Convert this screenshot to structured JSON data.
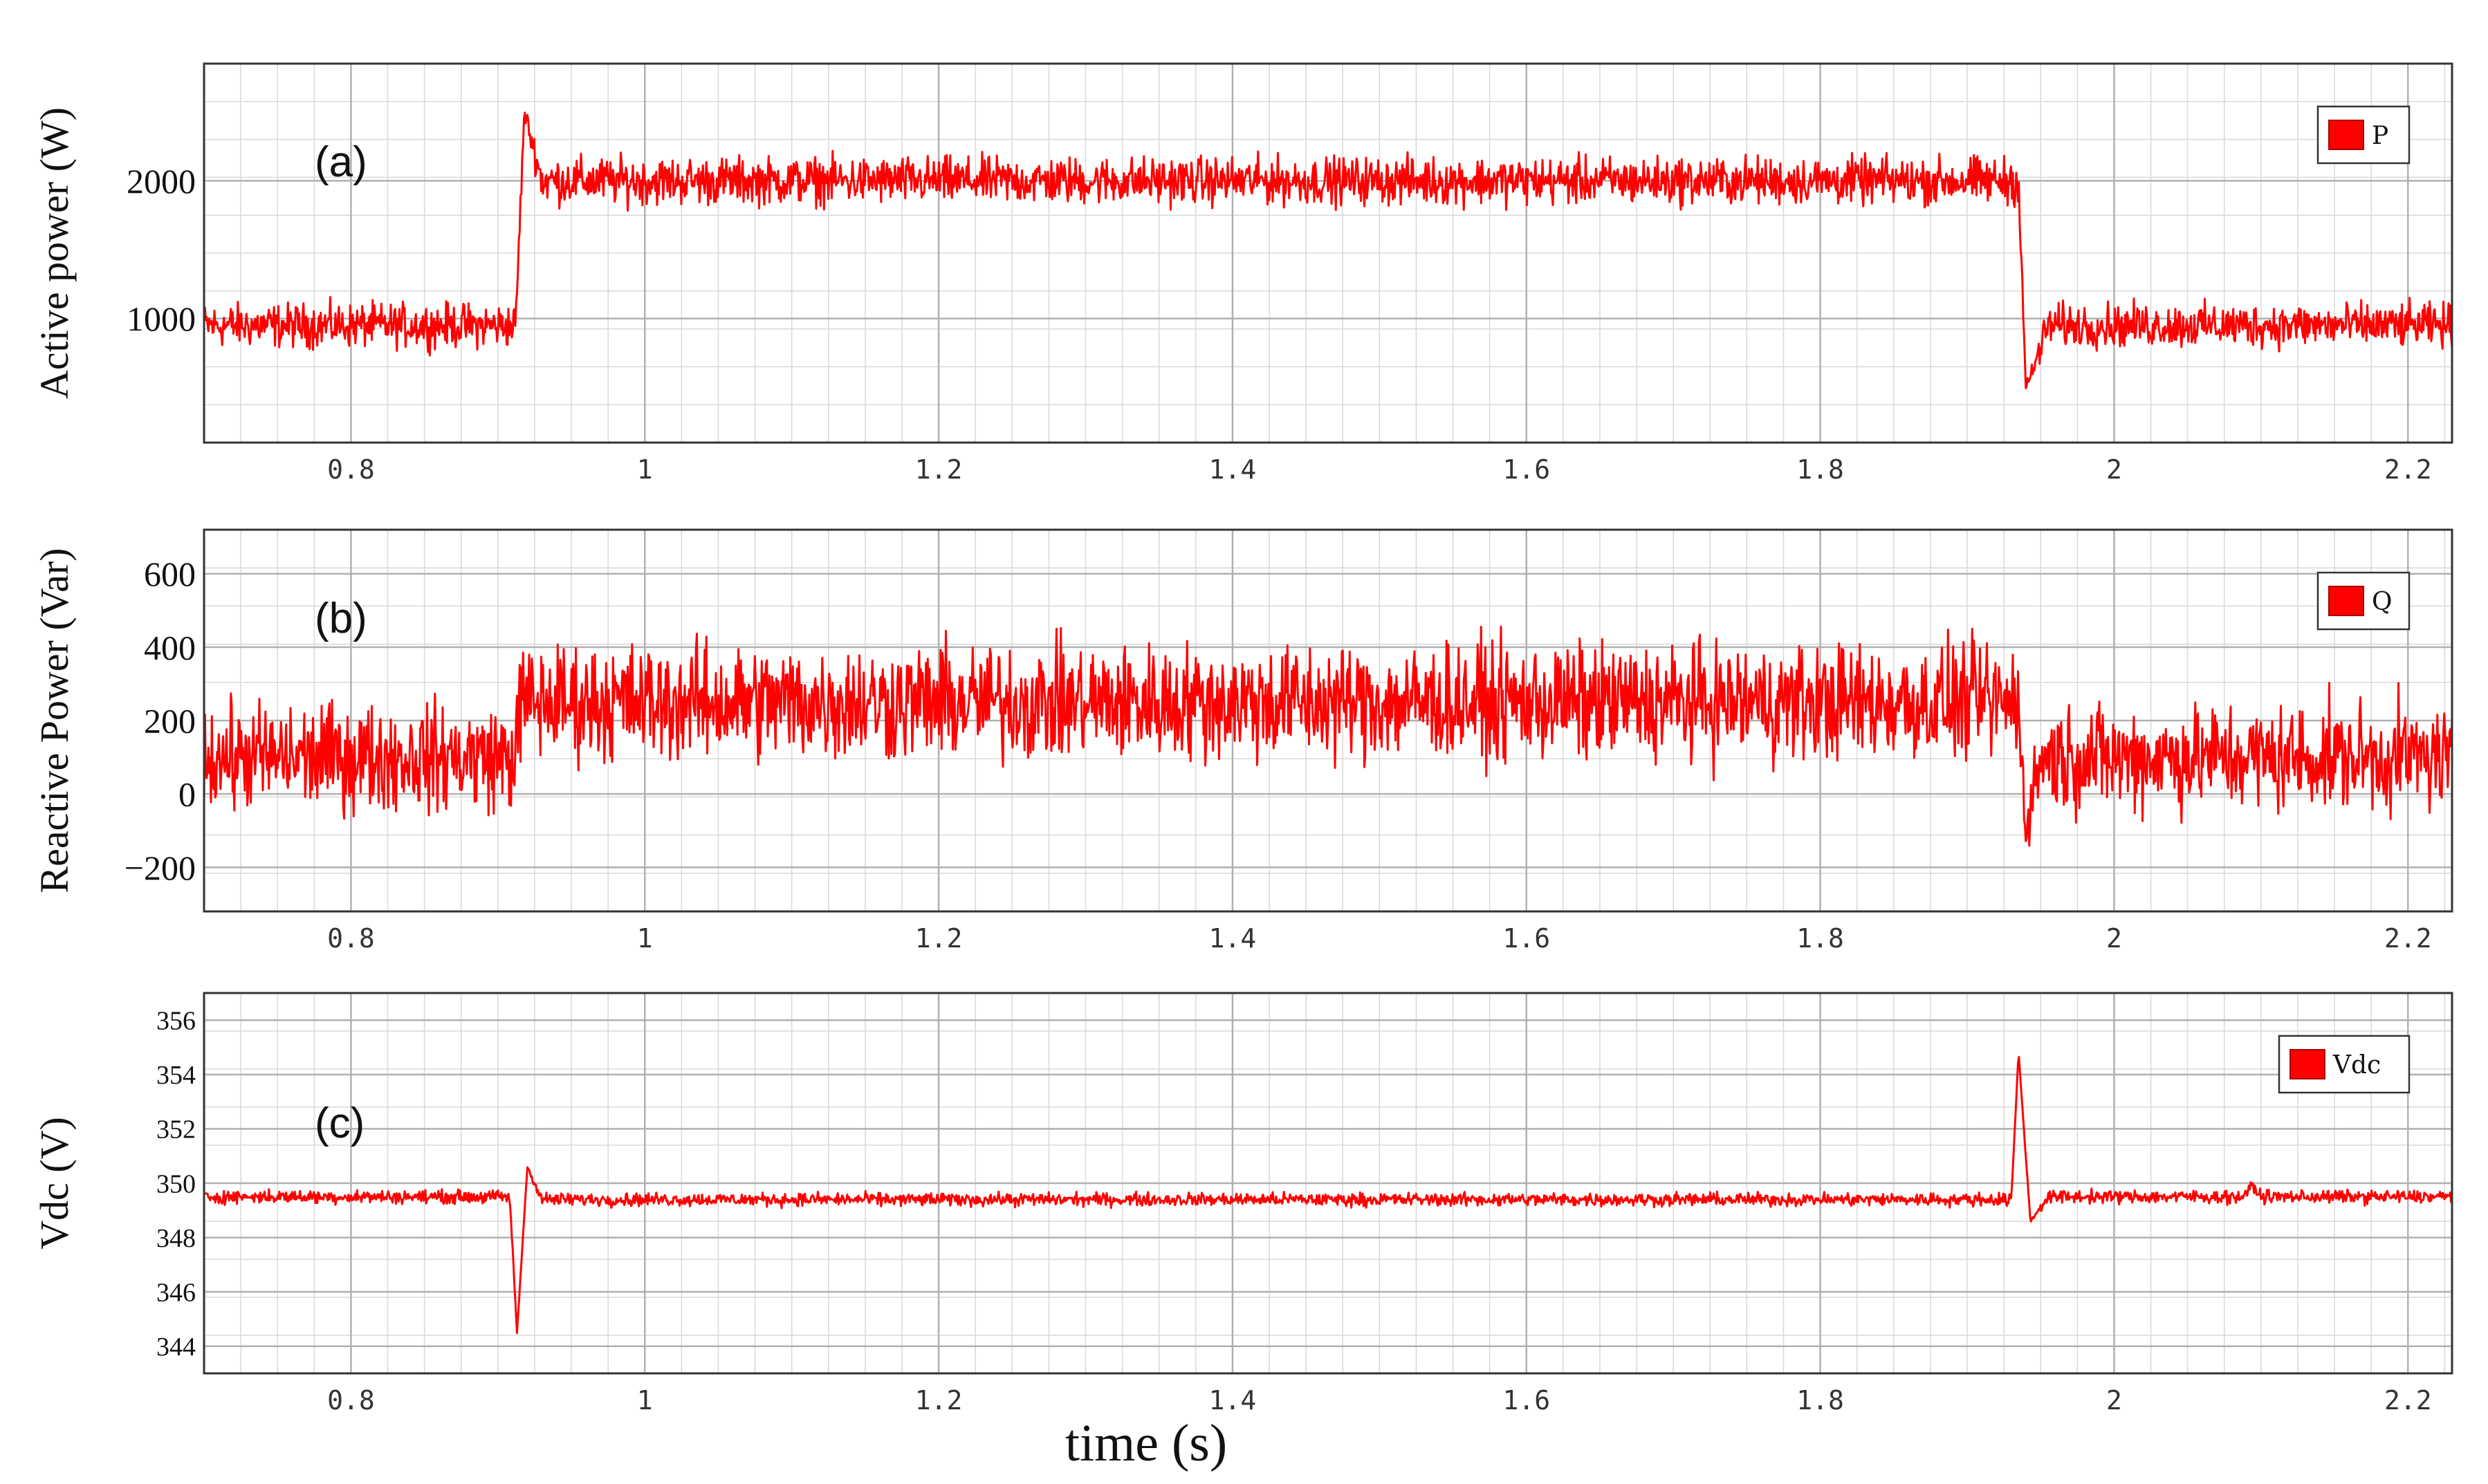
{
  "figure": {
    "xlabel": "time (s)",
    "signal_color": "#ff0000",
    "grid_color": "#d8d8d8",
    "major_grid_color": "#b0b0b0"
  },
  "chart_data": [
    {
      "type": "line",
      "panel_label": "(a)",
      "ylabel": "Active power (W)",
      "xlim": [
        0.7,
        2.23
      ],
      "ylim": [
        100,
        2850
      ],
      "xticks": [
        0.8,
        1,
        1.2,
        1.4,
        1.6,
        1.8,
        2,
        2.2
      ],
      "xtick_labels": [
        "0.8",
        "1",
        "1.2",
        "1.4",
        "1.6",
        "1.8",
        "2",
        "2.2"
      ],
      "yticks": [
        1000,
        2000
      ],
      "ytick_labels": [
        "1000",
        "2000"
      ],
      "legend": "top-right",
      "grid": true,
      "series": [
        {
          "name": "P",
          "color": "#ff0000",
          "profile": [
            {
              "t": 0.7,
              "mean": 950,
              "noise": 230
            },
            {
              "t": 0.912,
              "mean": 950,
              "noise": 230
            },
            {
              "t": 0.918,
              "mean": 2500,
              "noise": 80
            },
            {
              "t": 0.93,
              "mean": 2000,
              "noise": 250
            },
            {
              "t": 1.935,
              "mean": 2000,
              "noise": 250
            },
            {
              "t": 1.94,
              "mean": 480,
              "noise": 80
            },
            {
              "t": 1.955,
              "mean": 950,
              "noise": 230
            },
            {
              "t": 2.23,
              "mean": 950,
              "noise": 230
            }
          ]
        }
      ]
    },
    {
      "type": "line",
      "panel_label": "(b)",
      "ylabel": "Reactive Power (Var)",
      "xlim": [
        0.7,
        2.23
      ],
      "ylim": [
        -320,
        720
      ],
      "xticks": [
        0.8,
        1,
        1.2,
        1.4,
        1.6,
        1.8,
        2,
        2.2
      ],
      "xtick_labels": [
        "0.8",
        "1",
        "1.2",
        "1.4",
        "1.6",
        "1.8",
        "2",
        "2.2"
      ],
      "yticks": [
        -200,
        0,
        200,
        400,
        600
      ],
      "ytick_labels": [
        "−200",
        "0",
        "200",
        "400",
        "600"
      ],
      "legend": "top-right",
      "grid": true,
      "series": [
        {
          "name": "Q",
          "color": "#ff0000",
          "profile": [
            {
              "t": 0.7,
              "mean": 100,
              "noise": 210
            },
            {
              "t": 0.912,
              "mean": 100,
              "noise": 210
            },
            {
              "t": 0.915,
              "mean": 250,
              "noise": 230
            },
            {
              "t": 1.935,
              "mean": 250,
              "noise": 230
            },
            {
              "t": 1.94,
              "mean": -100,
              "noise": 80
            },
            {
              "t": 1.95,
              "mean": 100,
              "noise": 210
            },
            {
              "t": 2.23,
              "mean": 100,
              "noise": 210
            }
          ]
        }
      ]
    },
    {
      "type": "line",
      "panel_label": "(c)",
      "ylabel": "Vdc (V)",
      "xlim": [
        0.7,
        2.23
      ],
      "ylim": [
        343,
        357
      ],
      "xticks": [
        0.8,
        1,
        1.2,
        1.4,
        1.6,
        1.8,
        2,
        2.2
      ],
      "xtick_labels": [
        "0.8",
        "1",
        "1.2",
        "1.4",
        "1.6",
        "1.8",
        "2",
        "2.2"
      ],
      "yticks": [
        344,
        346,
        348,
        350,
        352,
        354,
        356
      ],
      "ytick_labels": [
        "344",
        "346",
        "348",
        "350",
        "352",
        "354",
        "356"
      ],
      "legend": "top-right",
      "grid": true,
      "series": [
        {
          "name": "Vdc",
          "color": "#ff0000",
          "profile": [
            {
              "t": 0.7,
              "mean": 349.5,
              "noise": 0.35
            },
            {
              "t": 0.908,
              "mean": 349.5,
              "noise": 0.35
            },
            {
              "t": 0.913,
              "mean": 344.5,
              "noise": 0.1
            },
            {
              "t": 0.92,
              "mean": 350.6,
              "noise": 0.1
            },
            {
              "t": 0.93,
              "mean": 349.4,
              "noise": 0.35
            },
            {
              "t": 1.93,
              "mean": 349.4,
              "noise": 0.35
            },
            {
              "t": 1.935,
              "mean": 354.8,
              "noise": 0.1
            },
            {
              "t": 1.943,
              "mean": 348.6,
              "noise": 0.1
            },
            {
              "t": 1.955,
              "mean": 349.5,
              "noise": 0.35
            },
            {
              "t": 2.09,
              "mean": 349.5,
              "noise": 0.35
            },
            {
              "t": 2.093,
              "mean": 350.0,
              "noise": 0.2
            },
            {
              "t": 2.1,
              "mean": 349.5,
              "noise": 0.35
            },
            {
              "t": 2.23,
              "mean": 349.5,
              "noise": 0.35
            }
          ]
        }
      ]
    }
  ]
}
